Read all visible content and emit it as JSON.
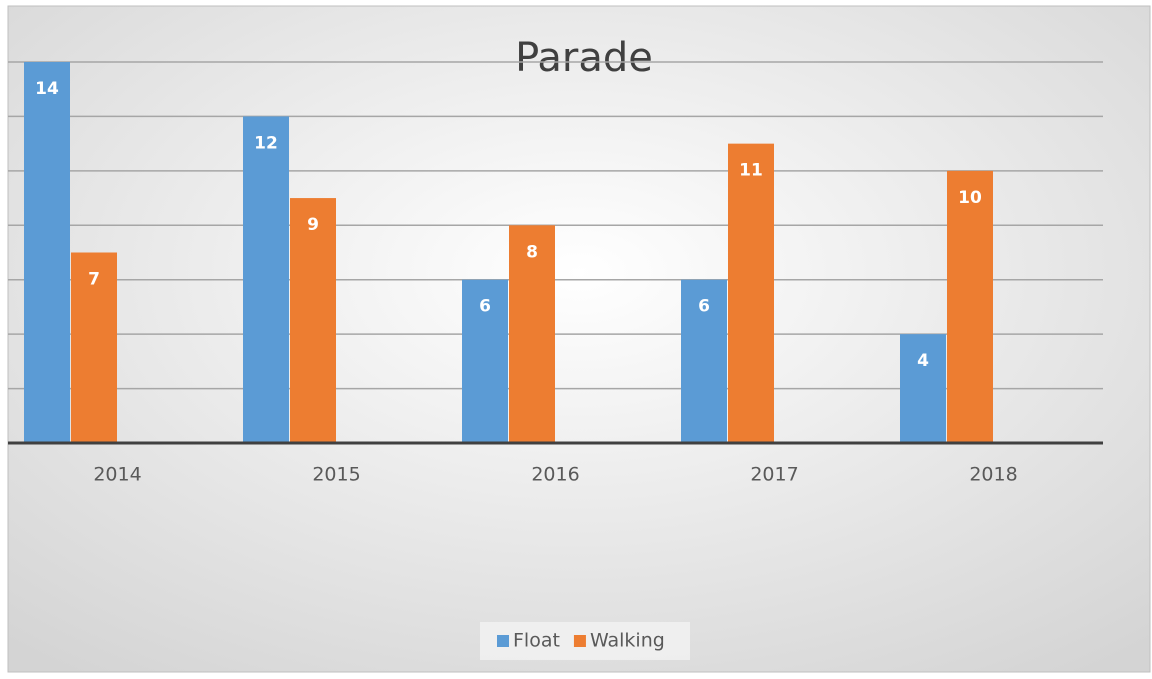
{
  "chart_data": {
    "type": "bar",
    "title": "Parade",
    "categories": [
      "2014",
      "2015",
      "2016",
      "2017",
      "2018"
    ],
    "series": [
      {
        "name": "Float",
        "color": "#5b9bd5",
        "values": [
          14,
          12,
          6,
          6,
          4
        ]
      },
      {
        "name": "Walking",
        "color": "#ed7d31",
        "values": [
          7,
          9,
          8,
          11,
          10
        ]
      }
    ],
    "ylim": [
      0,
      14
    ],
    "yticks": [
      0,
      2,
      4,
      6,
      8,
      10,
      12,
      14
    ],
    "grid": true,
    "legend": "bottom"
  }
}
